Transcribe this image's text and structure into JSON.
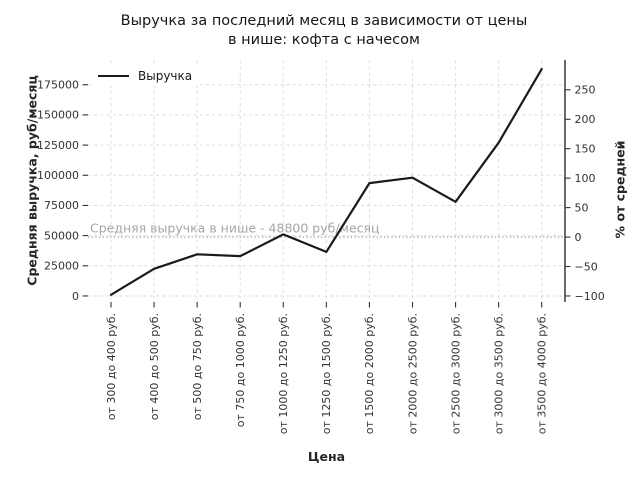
{
  "figure": {
    "title_lines": [
      "Выручка за последний месяц в зависимости от цены",
      "в нише: кофта с начесом"
    ]
  },
  "chart_data": {
    "type": "line",
    "title": "Выручка за последний месяц в зависимости от цены в нише: кофта с начесом",
    "xlabel": "Цена",
    "ylabel_left": "Средняя выручка, руб/месяц",
    "ylabel_right": "% от средней",
    "categories": [
      "от 300 до 400 руб.",
      "от 400 до 500 руб.",
      "от 500 до 750 руб.",
      "от 750 до 1000 руб.",
      "от 1000 до 1250 руб.",
      "от 1250 до 1500 руб.",
      "от 1500 до 2000 руб.",
      "от 2000 до 2500 руб.",
      "от 2500 до 3000 руб.",
      "от 3000 до 3500 руб.",
      "от 3500 до 4000 руб."
    ],
    "series": [
      {
        "name": "Выручка",
        "values": [
          1000,
          22500,
          34500,
          33000,
          51000,
          36500,
          93500,
          98000,
          78000,
          127000,
          188000
        ]
      }
    ],
    "y_ticks_left": [
      0,
      25000,
      50000,
      75000,
      100000,
      125000,
      150000,
      175000
    ],
    "y_ticks_right_pct": [
      -100,
      -50,
      0,
      50,
      100,
      150,
      200,
      250
    ],
    "ylim": [
      -5000,
      195500
    ],
    "average_line": {
      "value": 48800,
      "label": "Средняя выручка в нише - 48800 руб/месяц"
    },
    "legend": {
      "position": "upper-left",
      "entries": [
        "Выручка"
      ]
    },
    "grid": true,
    "colors": {
      "line": "#1a1a1a",
      "grid": "#dedede",
      "average": "#a6a6a6",
      "tick_text": "#333333",
      "spine": "#1a1a1a",
      "title_text": "#171717"
    }
  }
}
